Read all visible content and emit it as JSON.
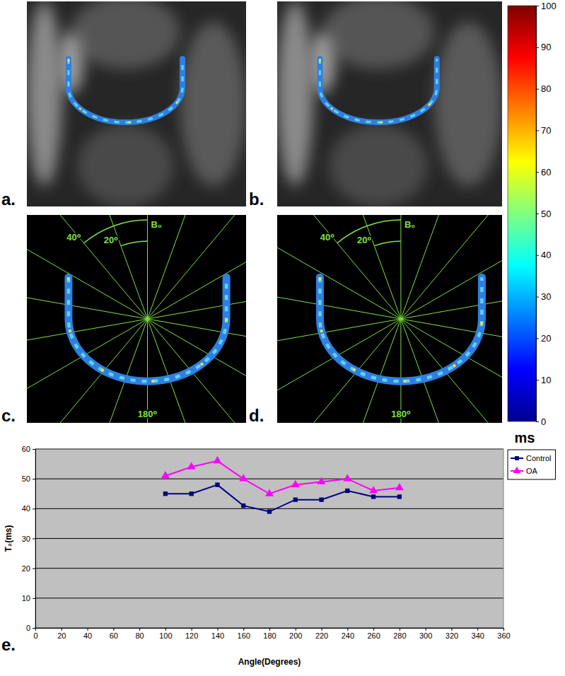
{
  "panels": [
    {
      "label": "a."
    },
    {
      "label": "b."
    },
    {
      "label": "c.",
      "annotations": [
        "40⁰",
        "20⁰",
        "B₀",
        "180⁰"
      ]
    },
    {
      "label": "d.",
      "annotations": [
        "40⁰",
        "20⁰",
        "B₀",
        "180⁰"
      ]
    },
    {
      "label": "e."
    }
  ],
  "colorbar": {
    "range": [
      0,
      100
    ],
    "ticks": [
      0,
      10,
      20,
      30,
      40,
      50,
      60,
      70,
      80,
      90,
      100
    ],
    "label": "ms"
  },
  "chart_data": {
    "type": "line",
    "x": [
      100,
      120,
      140,
      160,
      180,
      200,
      220,
      240,
      260,
      280
    ],
    "series": [
      {
        "name": "Control",
        "color": "#000080",
        "marker": "square",
        "values": [
          45,
          45,
          48,
          41,
          39,
          43,
          43,
          46,
          44,
          44
        ]
      },
      {
        "name": "OA",
        "color": "#ff00ff",
        "marker": "triangle",
        "values": [
          51,
          54,
          56,
          50,
          45,
          48,
          49,
          50,
          46,
          47
        ]
      }
    ],
    "xlabel": "Angle(Degrees)",
    "ylabel": "T₂(ms)",
    "xlim": [
      0,
      360
    ],
    "xticks": [
      0,
      20,
      40,
      60,
      80,
      100,
      120,
      140,
      160,
      180,
      200,
      220,
      240,
      260,
      280,
      300,
      320,
      340,
      360
    ],
    "ylim": [
      0,
      60
    ],
    "yticks": [
      0,
      10,
      20,
      30,
      40,
      50,
      60
    ],
    "grid": true,
    "legend": "right"
  }
}
